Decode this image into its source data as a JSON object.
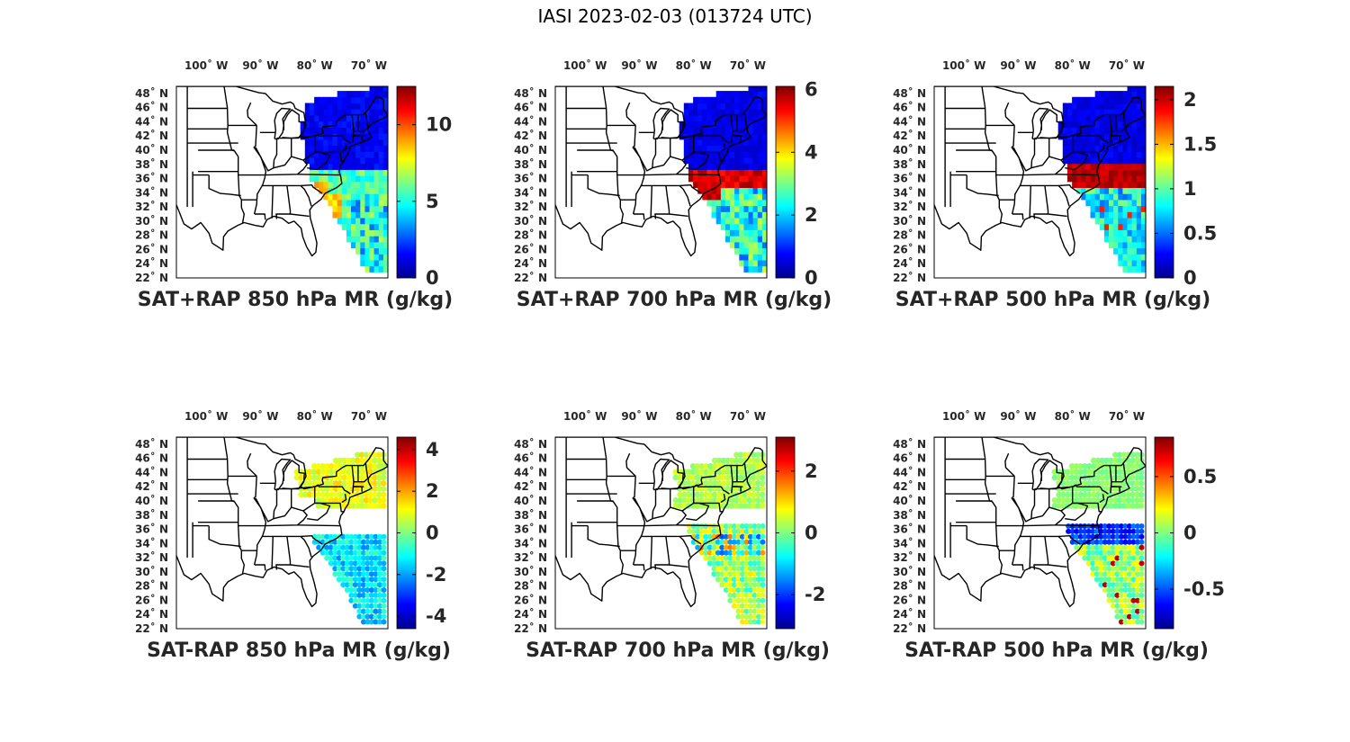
{
  "figure": {
    "title": "IASI 2023-02-03 (013724 UTC)",
    "colormap": "jet",
    "colormap_stops": [
      "#00008f",
      "#0000ff",
      "#0080ff",
      "#00ffff",
      "#80ff80",
      "#ffff00",
      "#ff8000",
      "#ff0000",
      "#800000"
    ],
    "longitude_labels": [
      "100˚ W",
      "90˚ W",
      "80˚ W",
      "70˚ W"
    ],
    "latitude_labels": [
      "48˚ N",
      "46˚ N",
      "44˚ N",
      "42˚ N",
      "40˚ N",
      "38˚ N",
      "36˚ N",
      "34˚ N",
      "32˚ N",
      "30˚ N",
      "28˚ N",
      "26˚ N",
      "24˚ N",
      "22˚ N"
    ],
    "map_extent": {
      "lon": [
        -106,
        -67
      ],
      "lat": [
        22,
        49
      ]
    }
  },
  "panels": [
    {
      "title": "SAT+RAP 850 hPa MR (g/kg)",
      "clim": [
        0,
        12.5
      ],
      "ticks": [
        "0",
        "5",
        "10"
      ],
      "tick_values": [
        0,
        5,
        10
      ]
    },
    {
      "title": "SAT+RAP 700 hPa MR (g/kg)",
      "clim": [
        0,
        6.1
      ],
      "ticks": [
        "0",
        "2",
        "4",
        "6"
      ],
      "tick_values": [
        0,
        2,
        4,
        6
      ]
    },
    {
      "title": "SAT+RAP 500 hPa MR (g/kg)",
      "clim": [
        0,
        2.15
      ],
      "ticks": [
        "0",
        "0.5",
        "1",
        "1.5",
        "2"
      ],
      "tick_values": [
        0,
        0.5,
        1,
        1.5,
        2
      ]
    },
    {
      "title": "SAT-RAP 850 hPa MR (g/kg)",
      "clim": [
        -4.6,
        4.6
      ],
      "ticks": [
        "-4",
        "-2",
        "0",
        "2",
        "4"
      ],
      "tick_values": [
        -4,
        -2,
        0,
        2,
        4
      ]
    },
    {
      "title": "SAT-RAP 700 hPa MR (g/kg)",
      "clim": [
        -3.1,
        3.1
      ],
      "ticks": [
        "-2",
        "0",
        "2"
      ],
      "tick_values": [
        -2,
        0,
        2
      ]
    },
    {
      "title": "SAT-RAP 500 hPa MR (g/kg)",
      "clim": [
        -0.85,
        0.85
      ],
      "ticks": [
        "-0.5",
        "0",
        "0.5"
      ],
      "tick_values": [
        -0.5,
        0,
        0.5
      ]
    }
  ]
}
